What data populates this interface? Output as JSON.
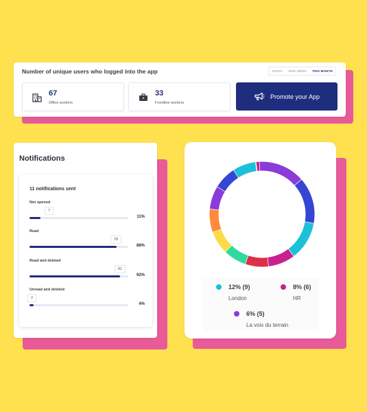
{
  "logins": {
    "title": "Number of unique users who logged into the app",
    "ranges": [
      "TODAY",
      "THIS WEEK",
      "THIS MONTH"
    ],
    "active_range": "THIS MONTH",
    "office": {
      "value": "67",
      "label": "Office workers",
      "icon": "building-icon"
    },
    "frontline": {
      "value": "33",
      "label": "Frontline workers",
      "icon": "briefcase-icon"
    },
    "promote_label": "Promote your App",
    "promote_icon": "megaphone-icon"
  },
  "notifications": {
    "title": "Notifications",
    "sent_label": "11 notifications sent",
    "metrics": [
      {
        "label": "Not opened",
        "count": "7",
        "percent_text": "11%",
        "percent": 11
      },
      {
        "label": "Read",
        "count": "78",
        "percent_text": "88%",
        "percent": 88
      },
      {
        "label": "Read and deleted",
        "count": "81",
        "percent_text": "92%",
        "percent": 92
      },
      {
        "label": "Unread and deleted",
        "count": "2",
        "percent_text": "4%",
        "percent": 4
      }
    ]
  },
  "chart_data": {
    "type": "pie",
    "title": "",
    "segments": [
      {
        "color": "#C8228F",
        "value": 1
      },
      {
        "color": "#8B3BD9",
        "value": 12
      },
      {
        "color": "#3546D4",
        "value": 12
      },
      {
        "color": "#1CC0D9",
        "value": 10
      },
      {
        "color": "#C8228F",
        "value": 7
      },
      {
        "color": "#DB3047",
        "value": 6
      },
      {
        "color": "#2FD9A0",
        "value": 6
      },
      {
        "color": "#FBDC46",
        "value": 6
      },
      {
        "color": "#FF8A3D",
        "value": 6
      },
      {
        "color": "#8B3BD9",
        "value": 6
      },
      {
        "color": "#3546D4",
        "value": 6
      },
      {
        "color": "#1CC0D9",
        "value": 6
      }
    ],
    "legend": [
      {
        "value": "12% (9)",
        "name": "London",
        "color": "#1CC0D9"
      },
      {
        "value": "8% (6)",
        "name": "HR",
        "color": "#C8228F"
      },
      {
        "value": "6% (5)",
        "name": "La voix du terrain",
        "color": "#8B3BD9"
      }
    ]
  }
}
